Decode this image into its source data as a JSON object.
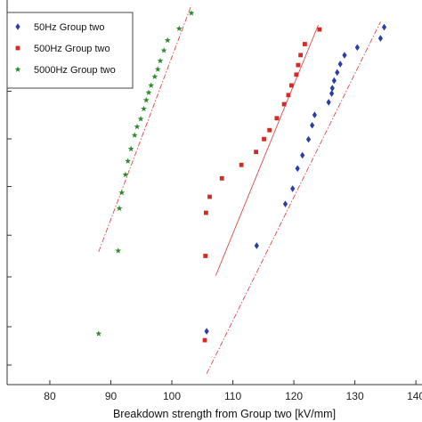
{
  "chart_data": {
    "type": "scatter",
    "title": "",
    "xlabel": "Breakdown strength from Group two [kV/mm]",
    "ylabel": "",
    "xlim": [
      73,
      141
    ],
    "ylim": [
      0,
      1
    ],
    "x_ticks": [
      80,
      90,
      100,
      110,
      120,
      130,
      140
    ],
    "y_tick_count": 9,
    "grid": false,
    "legend_position": "top-left",
    "series": [
      {
        "name": "50Hz Group two",
        "marker": "diamond",
        "color": "#2b3da6",
        "points": [
          [
            105.7,
            0.1387
          ],
          [
            113.9,
            0.3612
          ],
          [
            118.6,
            0.4695
          ],
          [
            119.8,
            0.5095
          ],
          [
            120.6,
            0.5618
          ],
          [
            121.4,
            0.5963
          ],
          [
            122.4,
            0.6376
          ],
          [
            123.0,
            0.6742
          ],
          [
            123.4,
            0.7012
          ],
          [
            125.7,
            0.7342
          ],
          [
            126.2,
            0.7569
          ],
          [
            126.3,
            0.7708
          ],
          [
            126.6,
            0.7903
          ],
          [
            127.1,
            0.8115
          ],
          [
            127.6,
            0.8334
          ],
          [
            128.3,
            0.8564
          ],
          [
            130.4,
            0.8767
          ],
          [
            134.2,
            0.9003
          ],
          [
            134.8,
            0.9293
          ]
        ],
        "fit_line": [
          [
            105.7,
            0.0283
          ],
          [
            134.2,
            0.9433
          ]
        ]
      },
      {
        "name": "500Hz Group two",
        "marker": "square",
        "color": "#d42a24",
        "points": [
          [
            105.4,
            0.1155
          ],
          [
            105.5,
            0.3346
          ],
          [
            105.6,
            0.4467
          ],
          [
            106.2,
            0.4884
          ],
          [
            108.2,
            0.5363
          ],
          [
            111.4,
            0.5712
          ],
          [
            113.8,
            0.605
          ],
          [
            115.1,
            0.6384
          ],
          [
            116.0,
            0.6616
          ],
          [
            117.2,
            0.6926
          ],
          [
            118.4,
            0.7291
          ],
          [
            119.1,
            0.7528
          ],
          [
            119.6,
            0.7779
          ],
          [
            120.4,
            0.806
          ],
          [
            120.7,
            0.8308
          ],
          [
            121.1,
            0.8567
          ],
          [
            121.8,
            0.8853
          ],
          [
            124.2,
            0.9234
          ]
        ],
        "fit_line": [
          [
            107.2,
            0.2838
          ],
          [
            124.0,
            0.9349
          ]
        ]
      },
      {
        "name": "5000Hz Group two",
        "marker": "star",
        "color": "#2e8a2e",
        "points": [
          [
            88.0,
            0.1323
          ],
          [
            91.2,
            0.348
          ],
          [
            91.4,
            0.458
          ],
          [
            91.8,
            0.499
          ],
          [
            92.4,
            0.5458
          ],
          [
            92.8,
            0.5812
          ],
          [
            93.3,
            0.6129
          ],
          [
            93.9,
            0.6483
          ],
          [
            94.3,
            0.6706
          ],
          [
            94.9,
            0.6908
          ],
          [
            95.4,
            0.7172
          ],
          [
            95.8,
            0.7396
          ],
          [
            96.2,
            0.7593
          ],
          [
            96.6,
            0.778
          ],
          [
            97.2,
            0.8006
          ],
          [
            97.7,
            0.8198
          ],
          [
            98.1,
            0.8418
          ],
          [
            98.7,
            0.8688
          ],
          [
            99.3,
            0.8953
          ],
          [
            101.2,
            0.9256
          ],
          [
            103.2,
            0.9659
          ]
        ],
        "fit_line": [
          [
            88.0,
            0.3452
          ],
          [
            103.2,
            0.9866
          ]
        ]
      }
    ]
  }
}
